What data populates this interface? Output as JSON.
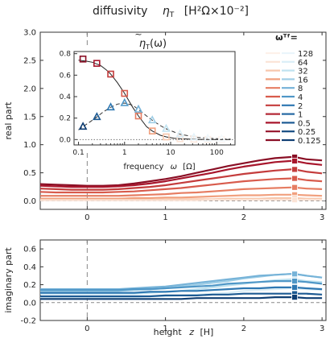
{
  "figure": {
    "title_text": "diffusivity",
    "title_symbol": "η",
    "title_sub": "T",
    "title_units": "[H²Ω×10⁻²]"
  },
  "colors": {
    "red_ramp": [
      "#fbe3d6",
      "#f7c7ad",
      "#f1a07e",
      "#e67d62",
      "#d85b4c",
      "#c43c3c",
      "#a8162c",
      "#8a0f25"
    ],
    "blue_ramp": [
      "#dbeef7",
      "#bfe2f0",
      "#9fcee6",
      "#76b3d8",
      "#4f97c7",
      "#2f78b2",
      "#1c5a93",
      "#0f3e73"
    ],
    "axis": "#333333",
    "dash": "#888888"
  },
  "chart_data": [
    {
      "id": "real",
      "type": "line",
      "ylabel": "real part",
      "xlim": [
        -0.6,
        3.05
      ],
      "ylim": [
        -0.15,
        3.0
      ],
      "x_ticks": [
        0,
        1,
        2,
        3
      ],
      "y_ticks": [
        0.0,
        0.5,
        1.0,
        1.5,
        2.0,
        2.5,
        3.0
      ],
      "y_tick_labels": [
        "0.0",
        "0.5",
        "1.0",
        "1.5",
        "2.0",
        "2.5",
        "3.0"
      ],
      "x": [
        -0.6,
        -0.4,
        -0.2,
        0.0,
        0.2,
        0.4,
        0.6,
        0.8,
        1.0,
        1.2,
        1.4,
        1.6,
        1.8,
        2.0,
        2.2,
        2.4,
        2.6,
        2.65,
        2.8,
        3.0
      ],
      "series": [
        {
          "omega": "0.125",
          "values": [
            0.3,
            0.29,
            0.28,
            0.27,
            0.27,
            0.28,
            0.31,
            0.35,
            0.39,
            0.44,
            0.5,
            0.56,
            0.62,
            0.67,
            0.72,
            0.76,
            0.78,
            0.78,
            0.74,
            0.72
          ]
        },
        {
          "omega": "0.25",
          "values": [
            0.27,
            0.26,
            0.25,
            0.25,
            0.25,
            0.26,
            0.28,
            0.31,
            0.35,
            0.4,
            0.45,
            0.5,
            0.56,
            0.61,
            0.65,
            0.69,
            0.71,
            0.71,
            0.67,
            0.64
          ]
        },
        {
          "omega": "0.5",
          "values": [
            0.22,
            0.21,
            0.2,
            0.2,
            0.2,
            0.21,
            0.23,
            0.25,
            0.28,
            0.32,
            0.36,
            0.4,
            0.44,
            0.48,
            0.51,
            0.54,
            0.56,
            0.56,
            0.52,
            0.49
          ]
        },
        {
          "omega": "1",
          "values": [
            0.16,
            0.15,
            0.15,
            0.15,
            0.15,
            0.16,
            0.17,
            0.19,
            0.21,
            0.23,
            0.26,
            0.29,
            0.32,
            0.35,
            0.37,
            0.39,
            0.4,
            0.4,
            0.37,
            0.35
          ]
        },
        {
          "omega": "2",
          "values": [
            0.09,
            0.09,
            0.09,
            0.09,
            0.09,
            0.09,
            0.1,
            0.11,
            0.12,
            0.14,
            0.15,
            0.17,
            0.19,
            0.21,
            0.22,
            0.23,
            0.24,
            0.24,
            0.22,
            0.21
          ]
        },
        {
          "omega": "4",
          "values": [
            0.04,
            0.04,
            0.04,
            0.04,
            0.04,
            0.04,
            0.05,
            0.05,
            0.06,
            0.06,
            0.07,
            0.08,
            0.09,
            0.1,
            0.1,
            0.11,
            0.11,
            0.11,
            0.1,
            0.09
          ]
        },
        {
          "omega": "8",
          "values": [
            0.02,
            0.02,
            0.02,
            0.02,
            0.02,
            0.02,
            0.02,
            0.02,
            0.03,
            0.03,
            0.03,
            0.03,
            0.04,
            0.04,
            0.04,
            0.05,
            0.05,
            0.05,
            0.04,
            0.04
          ]
        },
        {
          "omega": "16",
          "values": [
            0.01,
            0.01,
            0.01,
            0.01,
            0.01,
            0.01,
            0.01,
            0.01,
            0.01,
            0.01,
            0.01,
            0.02,
            0.02,
            0.02,
            0.02,
            0.02,
            0.02,
            0.02,
            0.02,
            0.02
          ]
        }
      ],
      "marker_x": 2.65,
      "dashed_vline_x": 0,
      "dashed_hline_y": 0
    },
    {
      "id": "imag",
      "type": "line",
      "ylabel": "imaginary part",
      "xlabel_text": "height",
      "xlabel_var": "z",
      "xlabel_units": "[H]",
      "xlim": [
        -0.6,
        3.05
      ],
      "ylim": [
        -0.2,
        0.7
      ],
      "x_ticks": [
        0,
        1,
        2,
        3
      ],
      "x_tick_labels": [
        "0",
        "1",
        "2",
        "3"
      ],
      "y_ticks": [
        -0.2,
        0.0,
        0.2,
        0.4,
        0.6
      ],
      "y_tick_labels": [
        "-0.2",
        "0.0",
        "0.2",
        "0.4",
        "0.6"
      ],
      "x": [
        -0.6,
        -0.4,
        -0.2,
        0.0,
        0.2,
        0.4,
        0.6,
        0.8,
        1.0,
        1.2,
        1.4,
        1.6,
        1.8,
        2.0,
        2.2,
        2.4,
        2.6,
        2.65,
        2.8,
        3.0
      ],
      "series": [
        {
          "omega": "16",
          "values": [
            0.06,
            0.06,
            0.06,
            0.06,
            0.06,
            0.06,
            0.06,
            0.07,
            0.07,
            0.08,
            0.09,
            0.1,
            0.11,
            0.13,
            0.14,
            0.15,
            0.16,
            0.16,
            0.15,
            0.14
          ]
        },
        {
          "omega": "8",
          "values": [
            0.1,
            0.1,
            0.1,
            0.1,
            0.1,
            0.1,
            0.1,
            0.11,
            0.12,
            0.13,
            0.15,
            0.17,
            0.19,
            0.21,
            0.23,
            0.25,
            0.26,
            0.26,
            0.24,
            0.23
          ]
        },
        {
          "omega": "4",
          "values": [
            0.13,
            0.13,
            0.13,
            0.13,
            0.13,
            0.13,
            0.14,
            0.15,
            0.16,
            0.18,
            0.2,
            0.22,
            0.24,
            0.27,
            0.29,
            0.31,
            0.32,
            0.32,
            0.3,
            0.28
          ]
        },
        {
          "omega": "2",
          "values": [
            0.15,
            0.15,
            0.15,
            0.15,
            0.15,
            0.15,
            0.16,
            0.17,
            0.18,
            0.2,
            0.22,
            0.24,
            0.26,
            0.28,
            0.3,
            0.31,
            0.32,
            0.32,
            0.3,
            0.28
          ]
        },
        {
          "omega": "1",
          "values": [
            0.14,
            0.14,
            0.14,
            0.14,
            0.14,
            0.14,
            0.15,
            0.15,
            0.16,
            0.17,
            0.18,
            0.19,
            0.21,
            0.22,
            0.23,
            0.24,
            0.24,
            0.24,
            0.23,
            0.21
          ]
        },
        {
          "omega": "0.5",
          "values": [
            0.11,
            0.11,
            0.11,
            0.11,
            0.11,
            0.11,
            0.11,
            0.12,
            0.12,
            0.13,
            0.13,
            0.14,
            0.15,
            0.16,
            0.16,
            0.17,
            0.17,
            0.17,
            0.16,
            0.15
          ]
        },
        {
          "omega": "0.25",
          "values": [
            0.07,
            0.07,
            0.07,
            0.07,
            0.07,
            0.07,
            0.07,
            0.07,
            0.08,
            0.08,
            0.08,
            0.09,
            0.09,
            0.1,
            0.1,
            0.1,
            0.1,
            0.1,
            0.1,
            0.09
          ]
        },
        {
          "omega": "0.125",
          "values": [
            0.04,
            0.04,
            0.04,
            0.04,
            0.04,
            0.04,
            0.04,
            0.04,
            0.04,
            0.04,
            0.05,
            0.05,
            0.05,
            0.05,
            0.05,
            0.06,
            0.06,
            0.06,
            0.05,
            0.05
          ]
        }
      ],
      "marker_x": 2.65,
      "dashed_vline_x": 0,
      "dashed_hline_y": 0
    },
    {
      "id": "inset",
      "type": "line",
      "title_symbol": "η",
      "title_sub": "T",
      "title_arg": "(ω)",
      "xlabel_text": "frequency",
      "xlabel_var": "ω",
      "xlabel_units": "[Ω]",
      "xscale": "log",
      "xlim": [
        0.08,
        250
      ],
      "ylim": [
        -0.05,
        0.82
      ],
      "x_ticks": [
        0.1,
        1,
        10,
        100
      ],
      "x_tick_labels": [
        "0.1",
        "1",
        "10",
        "100"
      ],
      "y_ticks": [
        0.0,
        0.2,
        0.4,
        0.6,
        0.8
      ],
      "y_tick_labels": [
        "0.0",
        "0.2",
        "0.4",
        "0.6",
        "0.8"
      ],
      "real_curve": {
        "x": [
          0.1,
          0.15,
          0.2,
          0.3,
          0.4,
          0.5,
          0.7,
          1,
          1.5,
          2,
          3,
          4,
          6,
          8,
          12,
          16,
          25,
          40,
          70,
          128,
          200
        ],
        "y": [
          0.74,
          0.73,
          0.72,
          0.69,
          0.65,
          0.61,
          0.53,
          0.43,
          0.3,
          0.22,
          0.12,
          0.08,
          0.04,
          0.025,
          0.012,
          0.008,
          0.004,
          0.002,
          0.001,
          0.0,
          0.0
        ]
      },
      "imag_curve": {
        "x": [
          0.1,
          0.125,
          0.2,
          0.25,
          0.35,
          0.5,
          0.7,
          1,
          1.5,
          2,
          3,
          4,
          6,
          8,
          12,
          16,
          25,
          40,
          70,
          128,
          200
        ],
        "y": [
          0.09,
          0.12,
          0.18,
          0.21,
          0.26,
          0.3,
          0.33,
          0.34,
          0.32,
          0.28,
          0.22,
          0.18,
          0.13,
          0.1,
          0.07,
          0.05,
          0.035,
          0.02,
          0.012,
          0.006,
          0.004
        ]
      },
      "omegas": [
        0.125,
        0.25,
        0.5,
        1,
        2,
        4,
        8,
        16,
        32,
        64,
        128
      ],
      "real_markers": [
        0.75,
        0.71,
        0.61,
        0.43,
        0.22,
        0.08,
        0.025,
        0.008,
        0.003,
        0.001,
        0.0
      ],
      "imag_markers": [
        0.12,
        0.21,
        0.3,
        0.34,
        0.28,
        0.18,
        0.1,
        0.05,
        0.02,
        0.01,
        0.006
      ],
      "dotted_hline_y": 0
    }
  ],
  "legend": {
    "title": "ωᵀᶠ=",
    "entries": [
      "128",
      "64",
      "32",
      "16",
      "8",
      "4",
      "2",
      "1",
      "0.5",
      "0.25",
      "0.125"
    ]
  }
}
